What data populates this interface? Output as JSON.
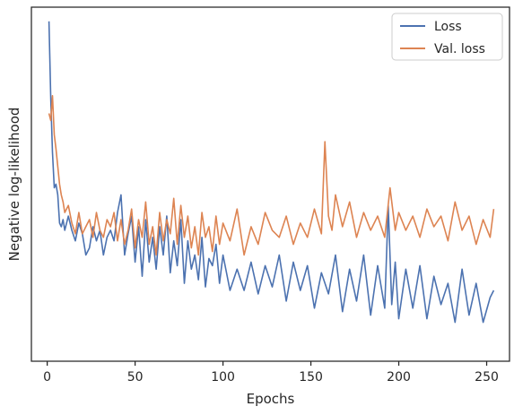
{
  "chart_data": {
    "type": "line",
    "title": "",
    "xlabel": "Epochs",
    "ylabel": "Negative log-likelihood",
    "xlim": [
      -9,
      263
    ],
    "ylim": [
      0,
      1
    ],
    "x_ticks": [
      0,
      50,
      100,
      150,
      200,
      250
    ],
    "y_ticks_shown": false,
    "grid": false,
    "legend_position": "top-right",
    "series": [
      {
        "name": "Loss",
        "color": "#4c72b0",
        "x": [
          1,
          2,
          3,
          4,
          5,
          6,
          7,
          8,
          9,
          10,
          12,
          14,
          16,
          18,
          20,
          22,
          24,
          26,
          28,
          30,
          32,
          34,
          36,
          38,
          40,
          42,
          44,
          46,
          48,
          50,
          52,
          54,
          56,
          58,
          60,
          62,
          64,
          66,
          68,
          70,
          72,
          74,
          76,
          78,
          80,
          82,
          84,
          86,
          88,
          90,
          92,
          94,
          96,
          98,
          100,
          104,
          108,
          112,
          116,
          120,
          124,
          128,
          132,
          136,
          140,
          144,
          148,
          152,
          156,
          160,
          164,
          168,
          172,
          176,
          180,
          184,
          188,
          192,
          194,
          196,
          198,
          200,
          204,
          208,
          212,
          216,
          220,
          224,
          228,
          232,
          236,
          240,
          244,
          248,
          252,
          254
        ],
        "y": [
          0.96,
          0.74,
          0.59,
          0.49,
          0.5,
          0.47,
          0.39,
          0.38,
          0.4,
          0.37,
          0.41,
          0.37,
          0.34,
          0.39,
          0.36,
          0.3,
          0.32,
          0.38,
          0.34,
          0.37,
          0.3,
          0.35,
          0.37,
          0.34,
          0.42,
          0.47,
          0.3,
          0.36,
          0.41,
          0.28,
          0.38,
          0.24,
          0.4,
          0.28,
          0.35,
          0.26,
          0.38,
          0.3,
          0.41,
          0.25,
          0.34,
          0.27,
          0.4,
          0.22,
          0.34,
          0.26,
          0.3,
          0.23,
          0.35,
          0.21,
          0.29,
          0.27,
          0.33,
          0.22,
          0.3,
          0.2,
          0.26,
          0.2,
          0.28,
          0.19,
          0.27,
          0.21,
          0.3,
          0.17,
          0.28,
          0.2,
          0.27,
          0.15,
          0.25,
          0.19,
          0.3,
          0.14,
          0.26,
          0.17,
          0.3,
          0.13,
          0.27,
          0.15,
          0.44,
          0.16,
          0.28,
          0.12,
          0.26,
          0.15,
          0.27,
          0.12,
          0.24,
          0.16,
          0.22,
          0.11,
          0.26,
          0.13,
          0.22,
          0.11,
          0.18,
          0.2
        ]
      },
      {
        "name": "Val. loss",
        "color": "#dd8452",
        "x": [
          1,
          2,
          3,
          4,
          5,
          6,
          7,
          8,
          9,
          10,
          12,
          14,
          16,
          18,
          20,
          22,
          24,
          26,
          28,
          30,
          32,
          34,
          36,
          38,
          40,
          42,
          44,
          46,
          48,
          50,
          52,
          54,
          56,
          58,
          60,
          62,
          64,
          66,
          68,
          70,
          72,
          74,
          76,
          78,
          80,
          82,
          84,
          86,
          88,
          90,
          92,
          94,
          96,
          98,
          100,
          104,
          108,
          112,
          116,
          120,
          124,
          128,
          132,
          136,
          140,
          144,
          148,
          152,
          156,
          158,
          160,
          162,
          164,
          168,
          172,
          176,
          180,
          184,
          188,
          192,
          195,
          198,
          200,
          204,
          208,
          212,
          216,
          220,
          224,
          228,
          232,
          236,
          240,
          244,
          248,
          252,
          254
        ],
        "y": [
          0.7,
          0.68,
          0.75,
          0.64,
          0.6,
          0.55,
          0.5,
          0.47,
          0.45,
          0.42,
          0.44,
          0.39,
          0.36,
          0.42,
          0.36,
          0.38,
          0.4,
          0.35,
          0.42,
          0.37,
          0.35,
          0.4,
          0.38,
          0.42,
          0.34,
          0.4,
          0.33,
          0.37,
          0.43,
          0.32,
          0.4,
          0.35,
          0.45,
          0.33,
          0.38,
          0.3,
          0.42,
          0.34,
          0.4,
          0.36,
          0.46,
          0.33,
          0.44,
          0.35,
          0.41,
          0.32,
          0.38,
          0.3,
          0.42,
          0.35,
          0.38,
          0.31,
          0.41,
          0.33,
          0.39,
          0.34,
          0.43,
          0.3,
          0.38,
          0.33,
          0.42,
          0.37,
          0.35,
          0.41,
          0.33,
          0.39,
          0.35,
          0.43,
          0.36,
          0.62,
          0.41,
          0.37,
          0.47,
          0.38,
          0.45,
          0.35,
          0.42,
          0.37,
          0.41,
          0.35,
          0.49,
          0.37,
          0.42,
          0.37,
          0.41,
          0.35,
          0.43,
          0.38,
          0.41,
          0.34,
          0.45,
          0.37,
          0.41,
          0.33,
          0.4,
          0.35,
          0.43
        ]
      }
    ]
  }
}
